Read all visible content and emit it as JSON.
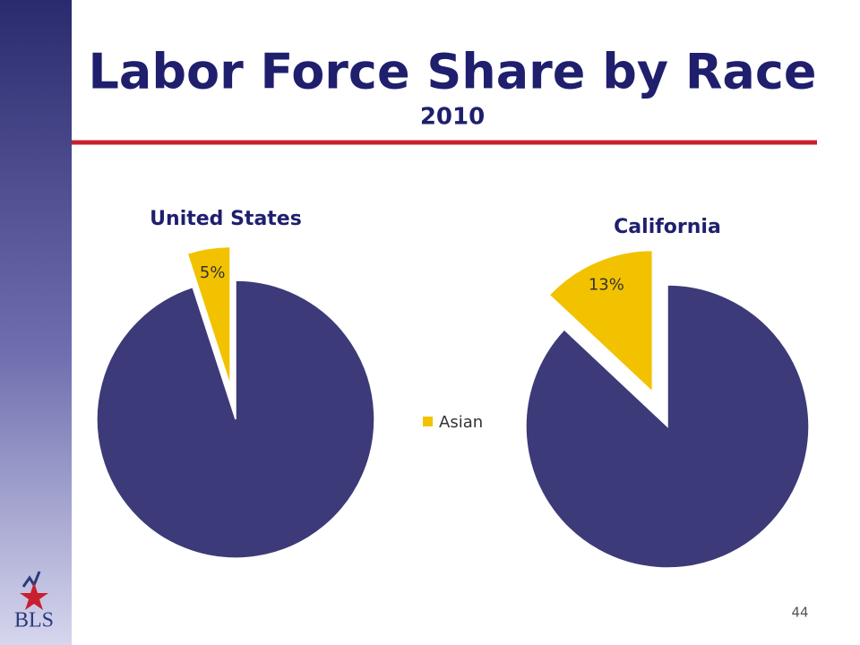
{
  "slide": {
    "title": "Labor Force Share by Race",
    "subtitle": "2010",
    "page_number": "44",
    "logo": "BLS"
  },
  "chart_data": [
    {
      "type": "pie",
      "title": "United States",
      "categories": [
        "Asian",
        null
      ],
      "values": [
        5,
        95
      ],
      "value_labels": [
        "5%",
        null
      ],
      "colors": [
        "#f2c200",
        "#3c3a78"
      ],
      "legend": "right"
    },
    {
      "type": "pie",
      "title": "California",
      "categories": [
        "Asian",
        null
      ],
      "values": [
        13,
        87
      ],
      "value_labels": [
        "13%",
        null
      ],
      "colors": [
        "#f2c200",
        "#3c3a78"
      ]
    }
  ]
}
